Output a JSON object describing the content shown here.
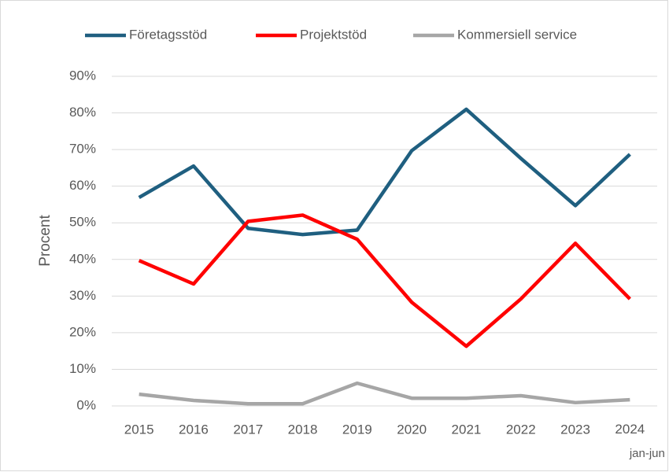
{
  "chart_data": {
    "type": "line",
    "y_label": "Procent",
    "categories": [
      "2015",
      "2016",
      "2017",
      "2018",
      "2019",
      "2020",
      "2021",
      "2022",
      "2023",
      "2024\njan-jun"
    ],
    "series": [
      {
        "name": "Företagsstöd",
        "color": "#1f5f80",
        "values": [
          56.9,
          65.5,
          48.5,
          46.8,
          48,
          69.7,
          81,
          67.6,
          54.7,
          68.7
        ]
      },
      {
        "name": "Projektstöd",
        "color": "#ff0000",
        "values": [
          39.7,
          33.3,
          50.4,
          52.1,
          45.5,
          28.3,
          16.3,
          29.2,
          44.4,
          29.2
        ]
      },
      {
        "name": "Kommersiell service",
        "color": "#a6a6a6",
        "values": [
          3.2,
          1.5,
          0.6,
          0.6,
          6.2,
          2.1,
          2.1,
          2.8,
          0.9,
          1.7
        ]
      }
    ],
    "ylim": [
      0,
      90
    ],
    "yticks": [
      {
        "value": 0,
        "label": "0%"
      },
      {
        "value": 10,
        "label": "10%"
      },
      {
        "value": 20,
        "label": "20%"
      },
      {
        "value": 30,
        "label": "30%"
      },
      {
        "value": 40,
        "label": "40%"
      },
      {
        "value": 50,
        "label": "50%"
      },
      {
        "value": 60,
        "label": "60%"
      },
      {
        "value": 70,
        "label": "70%"
      },
      {
        "value": 80,
        "label": "80%"
      },
      {
        "value": 90,
        "label": "90%"
      }
    ],
    "grid": true,
    "legend": "top"
  }
}
